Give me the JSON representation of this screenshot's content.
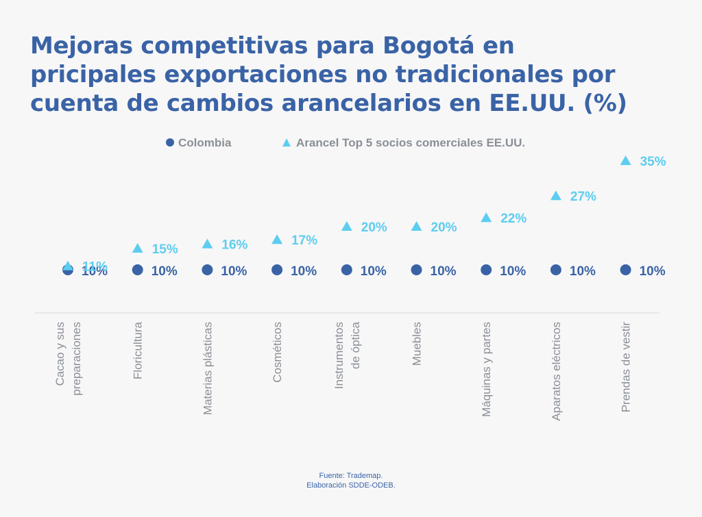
{
  "title_lines": [
    "Mejoras competitivas para Bogotá en",
    "pricipales exportaciones no tradicionales por",
    "cuenta de cambios arancelarios en EE.UU. (%)"
  ],
  "colors": {
    "colombia": "#3a63a6",
    "top5": "#5ccdf0",
    "title": "#3a63a6",
    "axis_text": "#8a8f96",
    "baseline": "#d9d9d9"
  },
  "chart_data": {
    "type": "scatter",
    "categories": [
      "Cacao y sus preparaciones",
      "Floricultura",
      "Materias plásticas",
      "Cosméticos",
      "Instrumentos de óptica",
      "Muebles",
      "Máquinas y partes",
      "Aparatos eléctricos",
      "Prendas de vestir"
    ],
    "category_label_lines": [
      [
        "Cacao y sus",
        "preparaciones"
      ],
      [
        "Floricultura"
      ],
      [
        "Materias plásticas"
      ],
      [
        "Cosméticos"
      ],
      [
        "Instrumentos",
        "de óptica"
      ],
      [
        "Muebles"
      ],
      [
        "Máquinas y partes"
      ],
      [
        "Aparatos eléctricos"
      ],
      [
        "Prendas de vestir"
      ]
    ],
    "series": [
      {
        "name": "Colombia",
        "marker": "circle",
        "values": [
          10,
          10,
          10,
          10,
          10,
          10,
          10,
          10,
          10
        ],
        "labels": [
          "10%",
          "10%",
          "10%",
          "10%",
          "10%",
          "10%",
          "10%",
          "10%",
          "10%"
        ]
      },
      {
        "name": "Arancel Top 5 socios comerciales EE.UU.",
        "marker": "triangle",
        "values": [
          11,
          15,
          16,
          17,
          20,
          20,
          22,
          27,
          35
        ],
        "labels": [
          "11%",
          "15%",
          "16%",
          "17%",
          "20%",
          "20%",
          "22%",
          "27%",
          "35%"
        ]
      }
    ],
    "ylim": [
      10,
      35
    ],
    "grid": false,
    "legend_position": "top-center"
  },
  "source": {
    "line1": "Fuente: Trademap.",
    "line2": "Elaboración SDDE-ODEB."
  }
}
